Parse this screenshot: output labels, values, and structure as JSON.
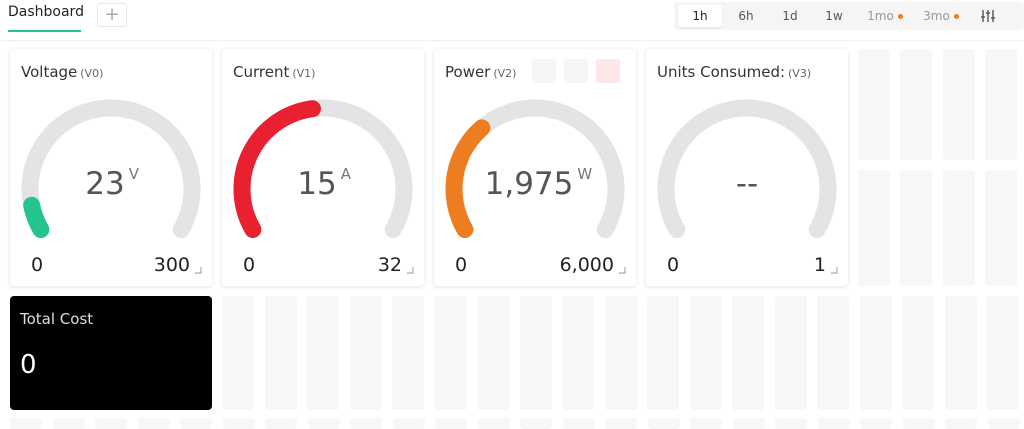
{
  "header": {
    "tab": "Dashboard",
    "add_button": "+"
  },
  "time_ranges": [
    {
      "label": "1h"
    },
    {
      "label": "6h"
    },
    {
      "label": "1d"
    },
    {
      "label": "1w"
    },
    {
      "label": "1mo",
      "dot": true
    },
    {
      "label": "3mo",
      "dot": true
    }
  ],
  "gauges": [
    {
      "title": "Voltage",
      "pin": "(V0)",
      "value": 23,
      "unit": "V",
      "min": 0,
      "max": 300,
      "color": "#23c48e"
    },
    {
      "title": "Current",
      "pin": "(V1)",
      "value": 15,
      "unit": "A",
      "min": 0,
      "max": 32,
      "color": "#e8202f"
    },
    {
      "title": "Power",
      "pin": "(V2)",
      "value": 1975,
      "value_label": "1,975",
      "unit": "W",
      "min": 0,
      "max": 6000,
      "max_label": "6,000",
      "color": "#ee7d22"
    },
    {
      "title": "Units Consumed:",
      "pin": "(V3)",
      "value": null,
      "value_label": "--",
      "min": 0,
      "max": 1,
      "color": "#999999"
    }
  ],
  "total_cost": {
    "title": "Total Cost",
    "value": 0
  }
}
